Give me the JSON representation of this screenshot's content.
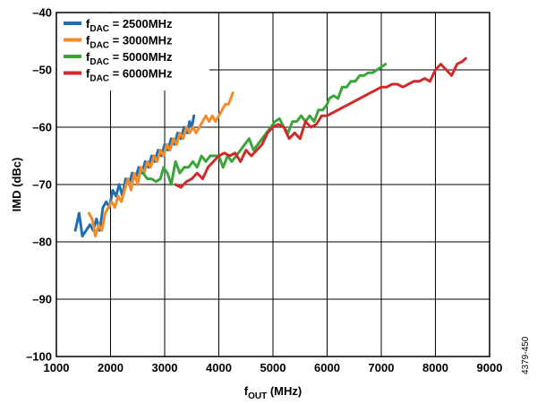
{
  "chart_data": {
    "type": "line",
    "xlabel": {
      "main": "f",
      "sub": "OUT",
      "rest": " (MHz)"
    },
    "ylabel": "IMD (dBc)",
    "xlim": [
      1000,
      9000
    ],
    "ylim": [
      -100,
      -40
    ],
    "xticks": [
      1000,
      2000,
      3000,
      4000,
      5000,
      6000,
      7000,
      8000,
      9000
    ],
    "yticks": [
      -40,
      -50,
      -60,
      -70,
      -80,
      -90,
      -100
    ],
    "xtick_labels": [
      "1000",
      "2000",
      "3000",
      "4000",
      "5000",
      "6000",
      "7000",
      "8000",
      "9000"
    ],
    "ytick_labels": [
      "–40",
      "–50",
      "–60",
      "–70",
      "–80",
      "–90",
      "–100"
    ],
    "grid": true,
    "legend_position": "top-left",
    "figure_id": "4379-450",
    "series": [
      {
        "name": {
          "main": "f",
          "sub": "DAC",
          "rest": " = 2500MHz"
        },
        "color": "#1f6fb2",
        "points": [
          [
            1350,
            -78
          ],
          [
            1420,
            -75
          ],
          [
            1480,
            -79
          ],
          [
            1550,
            -78
          ],
          [
            1620,
            -77
          ],
          [
            1680,
            -78
          ],
          [
            1740,
            -76
          ],
          [
            1800,
            -78
          ],
          [
            1860,
            -74
          ],
          [
            1920,
            -73
          ],
          [
            1980,
            -74
          ],
          [
            2040,
            -71
          ],
          [
            2100,
            -72
          ],
          [
            2160,
            -70
          ],
          [
            2220,
            -72
          ],
          [
            2280,
            -69
          ],
          [
            2340,
            -70
          ],
          [
            2400,
            -68
          ],
          [
            2460,
            -69
          ],
          [
            2520,
            -67
          ],
          [
            2580,
            -68
          ],
          [
            2640,
            -66
          ],
          [
            2700,
            -67
          ],
          [
            2760,
            -65
          ],
          [
            2820,
            -66
          ],
          [
            2880,
            -64
          ],
          [
            2940,
            -65
          ],
          [
            3000,
            -63
          ],
          [
            3060,
            -64
          ],
          [
            3120,
            -62
          ],
          [
            3180,
            -63
          ],
          [
            3240,
            -61
          ],
          [
            3300,
            -62
          ],
          [
            3360,
            -60
          ],
          [
            3420,
            -61
          ],
          [
            3460,
            -59
          ],
          [
            3500,
            -60
          ],
          [
            3540,
            -58
          ]
        ]
      },
      {
        "name": {
          "main": "f",
          "sub": "DAC",
          "rest": " = 3000MHz"
        },
        "color": "#f28c28",
        "points": [
          [
            1600,
            -75
          ],
          [
            1660,
            -76
          ],
          [
            1720,
            -79
          ],
          [
            1780,
            -77
          ],
          [
            1840,
            -78
          ],
          [
            1900,
            -75
          ],
          [
            1960,
            -74
          ],
          [
            2020,
            -73
          ],
          [
            2080,
            -74
          ],
          [
            2140,
            -72
          ],
          [
            2200,
            -73
          ],
          [
            2260,
            -71
          ],
          [
            2320,
            -69
          ],
          [
            2380,
            -71
          ],
          [
            2440,
            -68
          ],
          [
            2500,
            -70
          ],
          [
            2560,
            -67
          ],
          [
            2620,
            -68
          ],
          [
            2680,
            -66
          ],
          [
            2740,
            -67
          ],
          [
            2800,
            -65
          ],
          [
            2860,
            -66
          ],
          [
            2920,
            -64
          ],
          [
            2980,
            -65
          ],
          [
            3040,
            -63
          ],
          [
            3100,
            -64
          ],
          [
            3160,
            -62
          ],
          [
            3220,
            -63
          ],
          [
            3280,
            -61
          ],
          [
            3340,
            -62
          ],
          [
            3400,
            -60
          ],
          [
            3460,
            -61
          ],
          [
            3520,
            -60
          ],
          [
            3580,
            -61
          ],
          [
            3640,
            -60
          ],
          [
            3700,
            -59
          ],
          [
            3760,
            -58
          ],
          [
            3820,
            -59
          ],
          [
            3880,
            -58
          ],
          [
            3940,
            -59
          ],
          [
            4000,
            -58
          ],
          [
            4060,
            -57
          ],
          [
            4120,
            -56
          ],
          [
            4180,
            -56
          ],
          [
            4220,
            -55
          ],
          [
            4260,
            -54
          ]
        ]
      },
      {
        "name": {
          "main": "f",
          "sub": "DAC",
          "rest": " = 5000MHz"
        },
        "color": "#3aa63a",
        "points": [
          [
            2600,
            -68
          ],
          [
            2680,
            -69
          ],
          [
            2760,
            -69
          ],
          [
            2840,
            -69.5
          ],
          [
            2920,
            -69
          ],
          [
            2980,
            -67
          ],
          [
            3050,
            -68
          ],
          [
            3120,
            -70
          ],
          [
            3200,
            -66
          ],
          [
            3280,
            -68
          ],
          [
            3360,
            -67
          ],
          [
            3440,
            -67
          ],
          [
            3520,
            -66
          ],
          [
            3600,
            -67
          ],
          [
            3680,
            -65
          ],
          [
            3760,
            -66
          ],
          [
            3840,
            -65
          ],
          [
            3920,
            -65
          ],
          [
            4000,
            -65
          ],
          [
            4080,
            -67
          ],
          [
            4160,
            -65
          ],
          [
            4240,
            -66
          ],
          [
            4320,
            -65
          ],
          [
            4400,
            -64
          ],
          [
            4480,
            -63
          ],
          [
            4560,
            -62
          ],
          [
            4640,
            -64
          ],
          [
            4720,
            -63
          ],
          [
            4800,
            -62
          ],
          [
            4880,
            -61
          ],
          [
            4960,
            -60
          ],
          [
            5040,
            -59
          ],
          [
            5120,
            -58.5
          ],
          [
            5200,
            -60
          ],
          [
            5280,
            -61
          ],
          [
            5360,
            -59
          ],
          [
            5440,
            -59
          ],
          [
            5520,
            -58
          ],
          [
            5600,
            -59
          ],
          [
            5680,
            -58
          ],
          [
            5760,
            -59
          ],
          [
            5840,
            -57
          ],
          [
            5920,
            -57
          ],
          [
            6000,
            -56
          ],
          [
            6040,
            -55
          ],
          [
            6120,
            -54.5
          ],
          [
            6200,
            -55
          ],
          [
            6280,
            -53
          ],
          [
            6360,
            -53
          ],
          [
            6440,
            -52
          ],
          [
            6520,
            -52
          ],
          [
            6600,
            -51
          ],
          [
            6680,
            -51
          ],
          [
            6760,
            -50.5
          ],
          [
            6840,
            -50.5
          ],
          [
            6920,
            -50
          ],
          [
            7000,
            -49.5
          ],
          [
            7080,
            -49
          ]
        ]
      },
      {
        "name": {
          "main": "f",
          "sub": "DAC",
          "rest": " = 6000MHz"
        },
        "color": "#d22a2a",
        "points": [
          [
            3200,
            -70
          ],
          [
            3300,
            -70.5
          ],
          [
            3400,
            -69.5
          ],
          [
            3500,
            -69
          ],
          [
            3600,
            -68
          ],
          [
            3700,
            -69
          ],
          [
            3800,
            -67
          ],
          [
            3900,
            -66
          ],
          [
            4000,
            -65
          ],
          [
            4100,
            -64.5
          ],
          [
            4200,
            -65
          ],
          [
            4300,
            -64.5
          ],
          [
            4400,
            -66
          ],
          [
            4500,
            -64
          ],
          [
            4600,
            -65
          ],
          [
            4700,
            -64
          ],
          [
            4800,
            -63
          ],
          [
            4900,
            -61
          ],
          [
            5000,
            -60
          ],
          [
            5100,
            -59.5
          ],
          [
            5200,
            -60
          ],
          [
            5300,
            -62
          ],
          [
            5400,
            -61
          ],
          [
            5500,
            -62
          ],
          [
            5600,
            -59
          ],
          [
            5700,
            -60
          ],
          [
            5800,
            -59.5
          ],
          [
            5900,
            -58
          ],
          [
            6000,
            -58
          ],
          [
            6100,
            -57.5
          ],
          [
            6200,
            -57
          ],
          [
            6300,
            -56.5
          ],
          [
            6400,
            -56
          ],
          [
            6500,
            -55.5
          ],
          [
            6600,
            -55
          ],
          [
            6700,
            -54.5
          ],
          [
            6800,
            -54
          ],
          [
            6900,
            -53.5
          ],
          [
            7000,
            -53
          ],
          [
            7100,
            -53
          ],
          [
            7200,
            -52.5
          ],
          [
            7300,
            -52.5
          ],
          [
            7400,
            -53
          ],
          [
            7500,
            -52.5
          ],
          [
            7600,
            -52
          ],
          [
            7700,
            -52
          ],
          [
            7800,
            -51.5
          ],
          [
            7900,
            -52
          ],
          [
            8000,
            -50
          ],
          [
            8100,
            -49
          ],
          [
            8200,
            -50
          ],
          [
            8300,
            -51
          ],
          [
            8400,
            -49
          ],
          [
            8500,
            -48.5
          ],
          [
            8560,
            -48
          ]
        ]
      }
    ]
  }
}
